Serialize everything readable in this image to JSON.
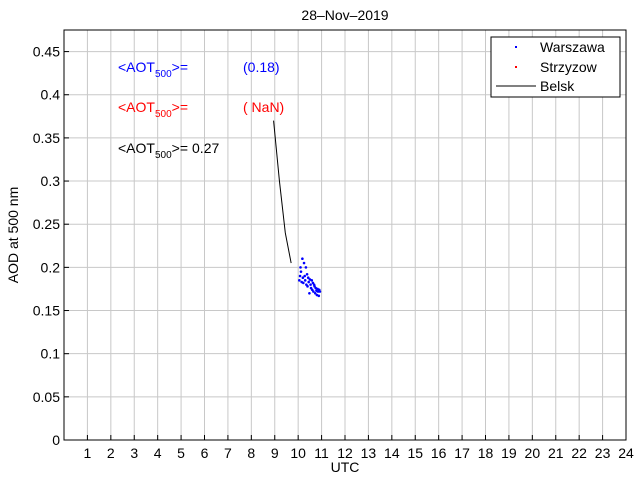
{
  "chart_data": {
    "type": "scatter",
    "title": "28–Nov–2019",
    "xlabel": "UTC",
    "ylabel": "AOD at 500 nm",
    "xlim": [
      0,
      24
    ],
    "ylim": [
      0,
      0.475
    ],
    "grid": true,
    "x_ticks": [
      1,
      2,
      3,
      4,
      5,
      6,
      7,
      8,
      9,
      10,
      11,
      12,
      13,
      14,
      15,
      16,
      17,
      18,
      19,
      20,
      21,
      22,
      23,
      24
    ],
    "y_ticks": [
      0,
      0.05,
      0.1,
      0.15,
      0.2,
      0.25,
      0.3,
      0.35,
      0.4,
      0.45
    ],
    "y_tick_labels": [
      "0",
      "0.05",
      "0.1",
      "0.15",
      "0.2",
      "0.25",
      "0.3",
      "0.35",
      "0.4",
      "0.45"
    ],
    "legend_position": "top-right",
    "series": [
      {
        "name": "Warszawa",
        "kind": "points",
        "color": "#0000ff",
        "x": [
          10.05,
          10.08,
          10.1,
          10.12,
          10.15,
          10.18,
          10.2,
          10.22,
          10.25,
          10.28,
          10.3,
          10.33,
          10.35,
          10.38,
          10.4,
          10.43,
          10.45,
          10.48,
          10.5,
          10.53,
          10.55,
          10.58,
          10.6,
          10.63,
          10.65,
          10.68,
          10.7,
          10.73,
          10.75,
          10.78,
          10.8,
          10.83,
          10.85,
          10.88,
          10.9,
          10.93
        ],
        "y": [
          0.185,
          0.19,
          0.2,
          0.195,
          0.183,
          0.21,
          0.188,
          0.182,
          0.205,
          0.19,
          0.185,
          0.2,
          0.18,
          0.192,
          0.178,
          0.188,
          0.183,
          0.17,
          0.186,
          0.18,
          0.176,
          0.185,
          0.174,
          0.182,
          0.172,
          0.18,
          0.178,
          0.17,
          0.176,
          0.173,
          0.168,
          0.175,
          0.172,
          0.167,
          0.174,
          0.172
        ]
      },
      {
        "name": "Strzyzow",
        "kind": "points",
        "color": "#ff0000",
        "x": [],
        "y": []
      },
      {
        "name": "Belsk",
        "kind": "line",
        "color": "#000000",
        "x": [
          8.95,
          9.2,
          9.45,
          9.7
        ],
        "y": [
          0.37,
          0.3,
          0.24,
          0.205
        ]
      }
    ],
    "annotations": [
      {
        "label": "<AOT",
        "sub": "500",
        "suffix": ">=",
        "value": "(0.18)",
        "color": "#0000ff"
      },
      {
        "label": "<AOT",
        "sub": "500",
        "suffix": ">=",
        "value": "( NaN)",
        "color": "#ff0000"
      },
      {
        "label": "<AOT",
        "sub": "500",
        "suffix": ">=",
        "value": "0.27",
        "color": "#000000"
      }
    ]
  }
}
